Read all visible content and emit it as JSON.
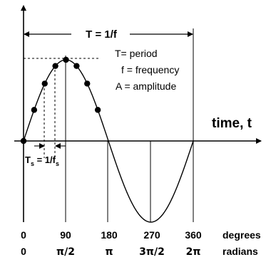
{
  "period_label": "T = 1/f",
  "legend": {
    "line1": "T= period",
    "line2": "f = frequency",
    "line3": "A = amplitude"
  },
  "time_axis_label": "time, t",
  "sample_interval": {
    "t": "T",
    "t_sub": "s",
    "mid": " = 1/f",
    "f_sub": "s"
  },
  "degrees": [
    "0",
    "90",
    "180",
    "270",
    "360"
  ],
  "degrees_label": "degrees",
  "radians": [
    "0",
    "π/2",
    "π",
    "3π/2",
    "2π"
  ],
  "radians_label": "radians",
  "sample_points_shown": 8
}
